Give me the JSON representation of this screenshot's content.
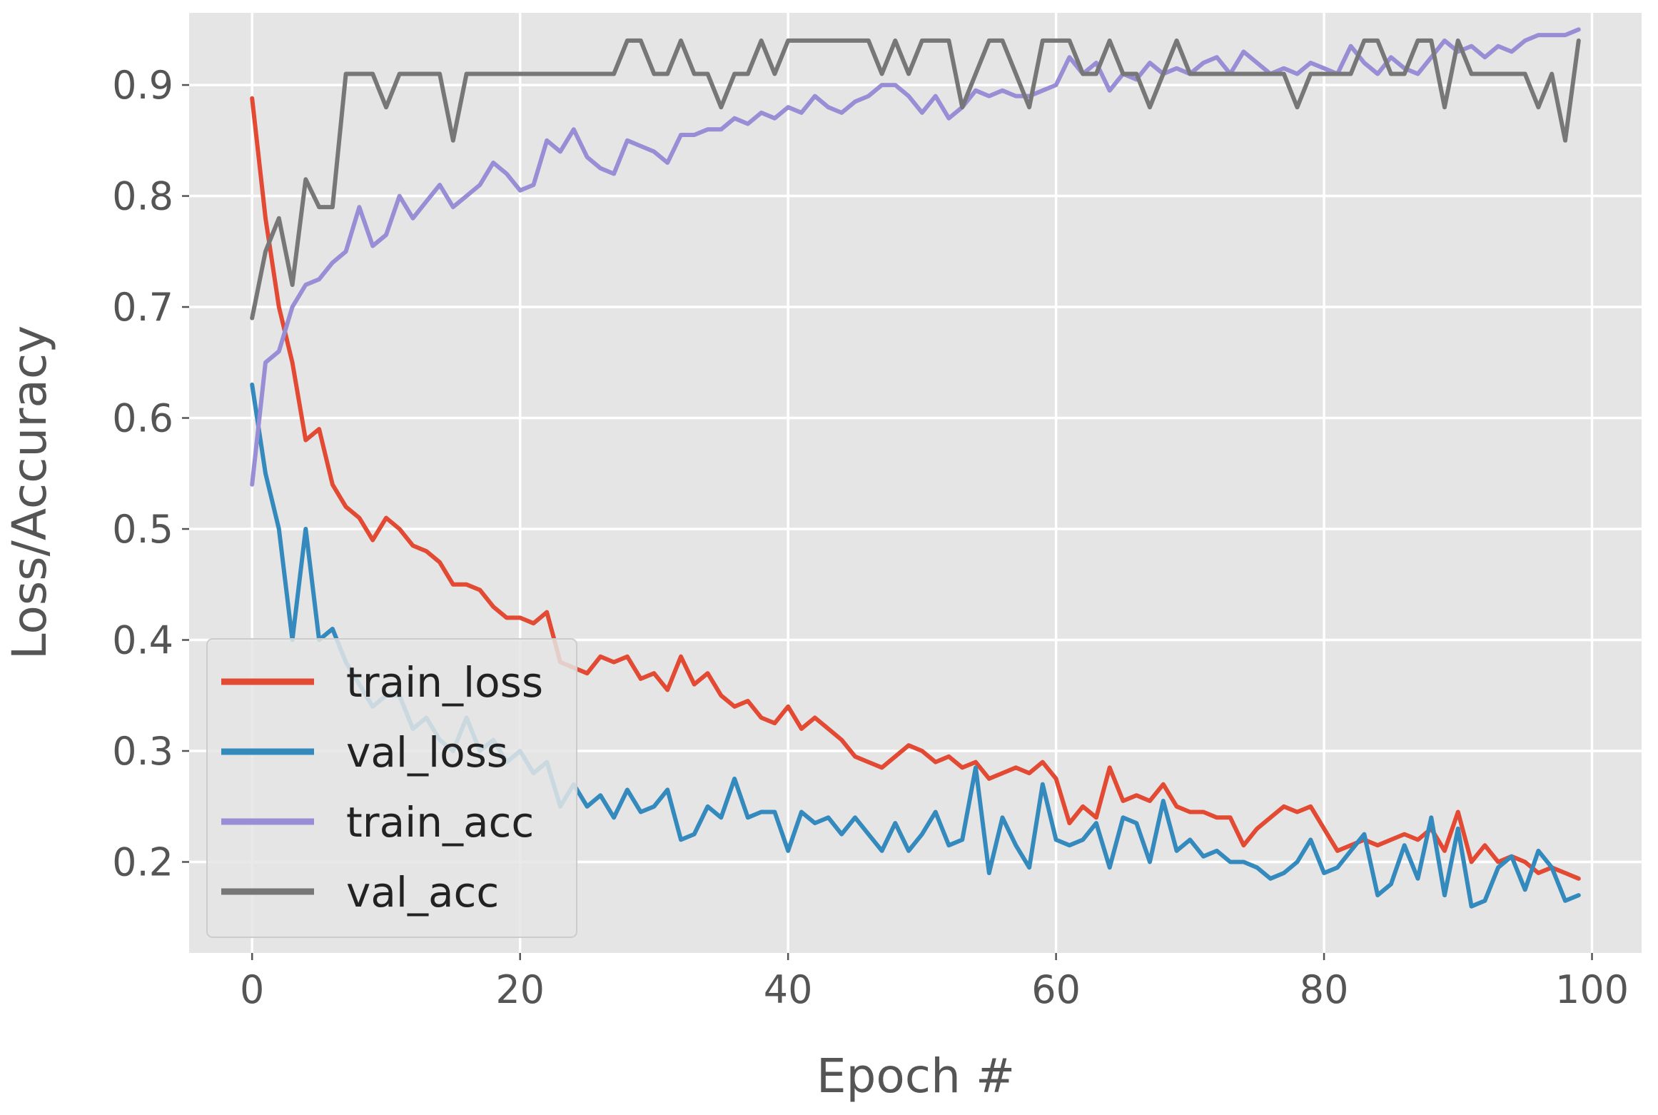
{
  "chart_data": {
    "type": "line",
    "title": "",
    "xlabel": "Epoch #",
    "ylabel": "Loss/Accuracy",
    "xlim": [
      -4.7,
      103.7
    ],
    "ylim": [
      0.118,
      0.965
    ],
    "xticks": [
      0,
      20,
      40,
      60,
      80,
      100
    ],
    "yticks": [
      0.2,
      0.3,
      0.4,
      0.5,
      0.6,
      0.7,
      0.8,
      0.9
    ],
    "xtick_labels": [
      "0",
      "20",
      "40",
      "60",
      "80",
      "100"
    ],
    "ytick_labels": [
      "0.2",
      "0.3",
      "0.4",
      "0.5",
      "0.6",
      "0.7",
      "0.8",
      "0.9"
    ],
    "grid": true,
    "legend_position": "lower-left",
    "x": [
      0,
      1,
      2,
      3,
      4,
      5,
      6,
      7,
      8,
      9,
      10,
      11,
      12,
      13,
      14,
      15,
      16,
      17,
      18,
      19,
      20,
      21,
      22,
      23,
      24,
      25,
      26,
      27,
      28,
      29,
      30,
      31,
      32,
      33,
      34,
      35,
      36,
      37,
      38,
      39,
      40,
      41,
      42,
      43,
      44,
      45,
      46,
      47,
      48,
      49,
      50,
      51,
      52,
      53,
      54,
      55,
      56,
      57,
      58,
      59,
      60,
      61,
      62,
      63,
      64,
      65,
      66,
      67,
      68,
      69,
      70,
      71,
      72,
      73,
      74,
      75,
      76,
      77,
      78,
      79,
      80,
      81,
      82,
      83,
      84,
      85,
      86,
      87,
      88,
      89,
      90,
      91,
      92,
      93,
      94,
      95,
      96,
      97,
      98,
      99
    ],
    "series": [
      {
        "name": "train_loss",
        "color": "#e24a33",
        "values": [
          0.888,
          0.78,
          0.7,
          0.65,
          0.58,
          0.59,
          0.54,
          0.52,
          0.51,
          0.49,
          0.51,
          0.5,
          0.485,
          0.48,
          0.47,
          0.45,
          0.45,
          0.445,
          0.43,
          0.42,
          0.42,
          0.415,
          0.425,
          0.38,
          0.375,
          0.37,
          0.385,
          0.38,
          0.385,
          0.365,
          0.37,
          0.355,
          0.385,
          0.36,
          0.37,
          0.35,
          0.34,
          0.345,
          0.33,
          0.325,
          0.34,
          0.32,
          0.33,
          0.32,
          0.31,
          0.295,
          0.29,
          0.285,
          0.295,
          0.305,
          0.3,
          0.29,
          0.295,
          0.285,
          0.29,
          0.275,
          0.28,
          0.285,
          0.28,
          0.29,
          0.275,
          0.235,
          0.25,
          0.24,
          0.285,
          0.255,
          0.26,
          0.255,
          0.27,
          0.25,
          0.245,
          0.245,
          0.24,
          0.24,
          0.215,
          0.23,
          0.24,
          0.25,
          0.245,
          0.25,
          0.23,
          0.21,
          0.215,
          0.22,
          0.215,
          0.22,
          0.225,
          0.22,
          0.23,
          0.21,
          0.245,
          0.2,
          0.215,
          0.2,
          0.205,
          0.2,
          0.19,
          0.195,
          0.19,
          0.185
        ]
      },
      {
        "name": "val_loss",
        "color": "#348abd",
        "values": [
          0.63,
          0.55,
          0.5,
          0.4,
          0.5,
          0.4,
          0.41,
          0.38,
          0.36,
          0.34,
          0.35,
          0.35,
          0.32,
          0.33,
          0.31,
          0.3,
          0.33,
          0.3,
          0.31,
          0.29,
          0.3,
          0.28,
          0.29,
          0.25,
          0.27,
          0.25,
          0.26,
          0.24,
          0.265,
          0.245,
          0.25,
          0.265,
          0.22,
          0.225,
          0.25,
          0.24,
          0.275,
          0.24,
          0.245,
          0.245,
          0.21,
          0.245,
          0.235,
          0.24,
          0.225,
          0.24,
          0.225,
          0.21,
          0.235,
          0.21,
          0.225,
          0.245,
          0.215,
          0.22,
          0.285,
          0.19,
          0.24,
          0.215,
          0.195,
          0.27,
          0.22,
          0.215,
          0.22,
          0.235,
          0.195,
          0.24,
          0.235,
          0.2,
          0.255,
          0.21,
          0.22,
          0.205,
          0.21,
          0.2,
          0.2,
          0.195,
          0.185,
          0.19,
          0.2,
          0.22,
          0.19,
          0.195,
          0.21,
          0.225,
          0.17,
          0.18,
          0.215,
          0.185,
          0.24,
          0.17,
          0.23,
          0.16,
          0.165,
          0.195,
          0.205,
          0.175,
          0.21,
          0.195,
          0.165,
          0.17
        ]
      },
      {
        "name": "train_acc",
        "color": "#988ed5",
        "values": [
          0.54,
          0.65,
          0.66,
          0.7,
          0.72,
          0.725,
          0.74,
          0.75,
          0.79,
          0.755,
          0.765,
          0.8,
          0.78,
          0.795,
          0.81,
          0.79,
          0.8,
          0.81,
          0.83,
          0.82,
          0.805,
          0.81,
          0.85,
          0.84,
          0.86,
          0.835,
          0.825,
          0.82,
          0.85,
          0.845,
          0.84,
          0.83,
          0.855,
          0.855,
          0.86,
          0.86,
          0.87,
          0.865,
          0.875,
          0.87,
          0.88,
          0.875,
          0.89,
          0.88,
          0.875,
          0.885,
          0.89,
          0.9,
          0.9,
          0.89,
          0.875,
          0.89,
          0.87,
          0.88,
          0.895,
          0.89,
          0.895,
          0.89,
          0.89,
          0.895,
          0.9,
          0.925,
          0.91,
          0.92,
          0.895,
          0.91,
          0.905,
          0.92,
          0.91,
          0.915,
          0.91,
          0.92,
          0.925,
          0.91,
          0.93,
          0.92,
          0.91,
          0.915,
          0.91,
          0.92,
          0.915,
          0.91,
          0.935,
          0.92,
          0.91,
          0.925,
          0.915,
          0.91,
          0.925,
          0.94,
          0.93,
          0.935,
          0.925,
          0.935,
          0.93,
          0.94,
          0.945,
          0.945,
          0.945,
          0.95
        ]
      },
      {
        "name": "val_acc",
        "color": "#777777",
        "values": [
          0.69,
          0.75,
          0.78,
          0.72,
          0.815,
          0.79,
          0.79,
          0.91,
          0.91,
          0.91,
          0.88,
          0.91,
          0.91,
          0.91,
          0.91,
          0.85,
          0.91,
          0.91,
          0.91,
          0.91,
          0.91,
          0.91,
          0.91,
          0.91,
          0.91,
          0.91,
          0.91,
          0.91,
          0.94,
          0.94,
          0.91,
          0.91,
          0.94,
          0.91,
          0.91,
          0.88,
          0.91,
          0.91,
          0.94,
          0.91,
          0.94,
          0.94,
          0.94,
          0.94,
          0.94,
          0.94,
          0.94,
          0.91,
          0.94,
          0.91,
          0.94,
          0.94,
          0.94,
          0.88,
          0.91,
          0.94,
          0.94,
          0.91,
          0.88,
          0.94,
          0.94,
          0.94,
          0.91,
          0.91,
          0.94,
          0.91,
          0.91,
          0.88,
          0.91,
          0.94,
          0.91,
          0.91,
          0.91,
          0.91,
          0.91,
          0.91,
          0.91,
          0.91,
          0.88,
          0.91,
          0.91,
          0.91,
          0.91,
          0.94,
          0.94,
          0.91,
          0.91,
          0.94,
          0.94,
          0.88,
          0.94,
          0.91,
          0.91,
          0.91,
          0.91,
          0.91,
          0.88,
          0.91,
          0.85,
          0.94
        ]
      }
    ]
  }
}
